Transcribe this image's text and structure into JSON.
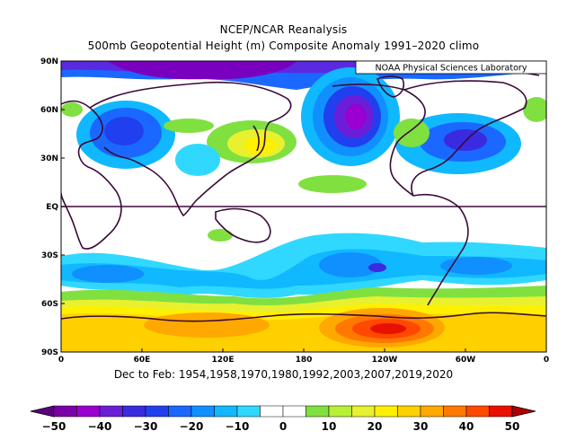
{
  "title_line1": "NCEP/NCAR Reanalysis",
  "title_line2": "500mb Geopotential Height (m) Composite Anomaly 1991–2020 climo",
  "credit": "NOAA Physical Sciences Laboratory",
  "caption": "Dec to Feb: 1954,1958,1970,1980,1992,2003,2007,2019,2020",
  "lat_labels": [
    "90N",
    "60N",
    "30N",
    "EQ",
    "30S",
    "60S",
    "90S"
  ],
  "lon_labels": [
    "0",
    "60E",
    "120E",
    "180",
    "120W",
    "60W",
    "0"
  ],
  "colorbar": {
    "labels": [
      "−50",
      "−40",
      "−30",
      "−20",
      "−10",
      "0",
      "10",
      "20",
      "30",
      "40",
      "50"
    ],
    "colors": [
      "#5c0080",
      "#7a00a8",
      "#9a00d0",
      "#6a1ed8",
      "#3a2ae0",
      "#2040f0",
      "#1a68ff",
      "#1090ff",
      "#10b8ff",
      "#30d8ff",
      "#ffffff",
      "#ffffff",
      "#80e040",
      "#b8f038",
      "#e8f030",
      "#fff000",
      "#ffd000",
      "#ffa800",
      "#ff7800",
      "#ff4800",
      "#e81000",
      "#b00000"
    ]
  }
}
